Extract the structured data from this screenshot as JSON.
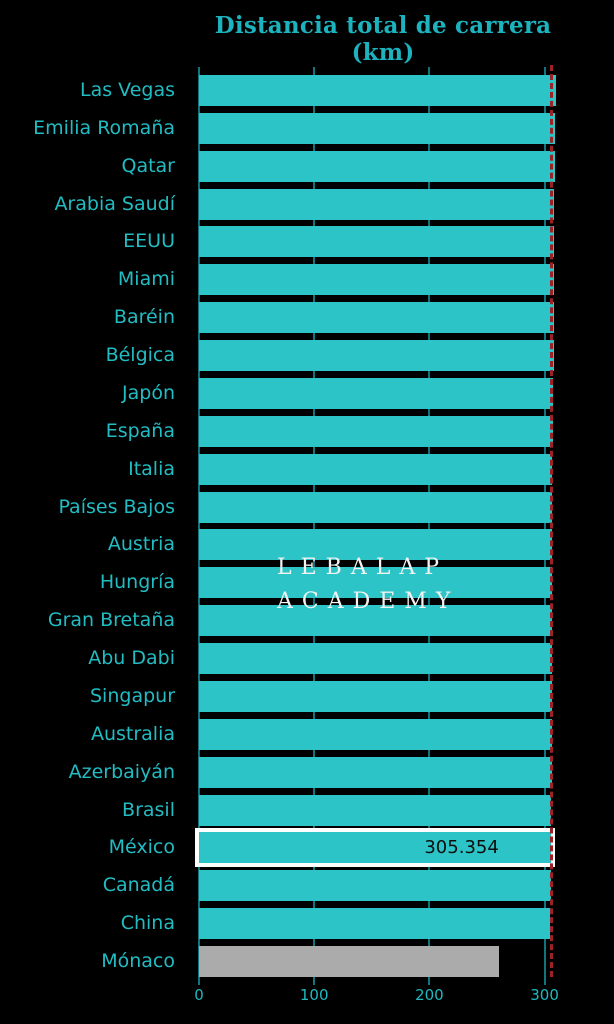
{
  "title": "Distancia total de carrera (km)",
  "watermark": {
    "line1": "LEBALAP",
    "line2": "ACADEMY"
  },
  "colors": {
    "background": "#000000",
    "bar": "#2cc4c7",
    "monaco_bar": "#ababab",
    "category_label": "#22bcc3",
    "title": "#1cb3be",
    "gridline": "#10757e",
    "reference_line": "#9b2226",
    "highlight_border": "#ffffff",
    "value_text": "#0d0d0d",
    "watermark": "#f2f2f2"
  },
  "chart_data": {
    "type": "bar",
    "orientation": "horizontal",
    "title": "Distancia total de carrera (km)",
    "xlabel": "",
    "ylabel": "",
    "xlim": [
      0,
      360
    ],
    "xticks": [
      "0",
      "100",
      "200",
      "300"
    ],
    "xtick_values": [
      0,
      100,
      200,
      300
    ],
    "grid": "vertical",
    "legend": "none",
    "categories": [
      "Las Vegas",
      "Emilia Romaña",
      "Qatar",
      "Arabia Saudí",
      "EEUU",
      "Miami",
      "Baréin",
      "Bélgica",
      "Japón",
      "España",
      "Italia",
      "Países Bajos",
      "Austria",
      "Hungría",
      "Gran Bretaña",
      "Abu Dabi",
      "Singapur",
      "Australia",
      "Azerbaiyán",
      "Brasil",
      "México",
      "Canadá",
      "China",
      "Mónaco"
    ],
    "values": [
      309.958,
      309.049,
      308.611,
      308.45,
      308.405,
      308.326,
      308.238,
      308.052,
      307.471,
      307.236,
      306.72,
      306.587,
      306.452,
      306.4,
      306.198,
      306.183,
      306.143,
      306.124,
      306.049,
      305.879,
      305.354,
      305.27,
      305.066,
      260.286
    ],
    "highlight": {
      "category": "México",
      "label": "305.354"
    },
    "reference_line": {
      "value": 305.354,
      "style": "dashed"
    },
    "bar_color_overrides": {
      "Mónaco": "#ababab"
    }
  }
}
